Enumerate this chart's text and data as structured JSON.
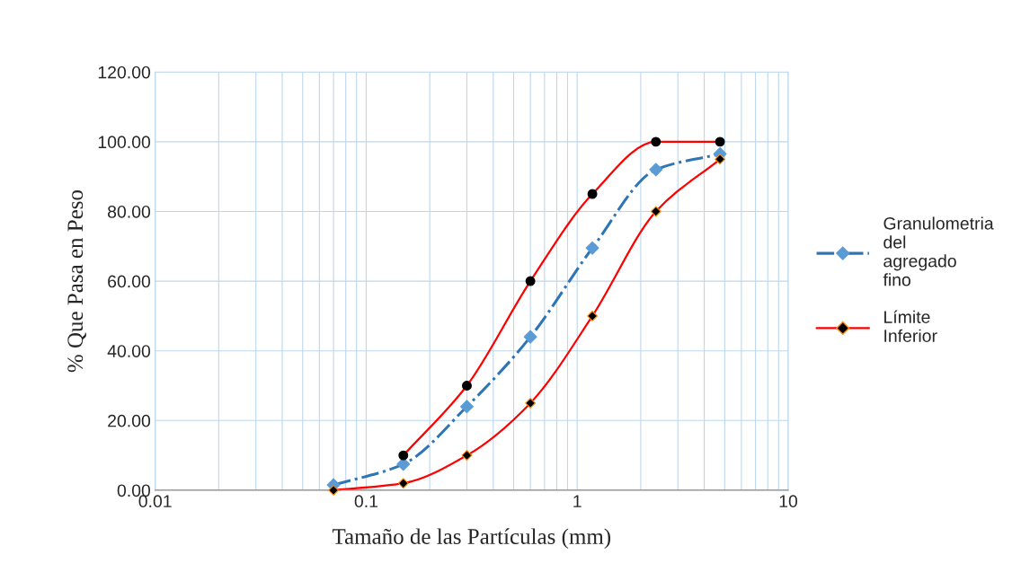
{
  "chart_data": {
    "type": "line",
    "xlabel": "Tamaño de las Partículas (mm)",
    "ylabel": "% Que Pasa en Peso",
    "log": "x",
    "grid": true,
    "legend": "right",
    "xlim": [
      0.01,
      10
    ],
    "xticks": [
      0.01,
      0.1,
      1,
      10
    ],
    "ylim": [
      0,
      120
    ],
    "yticks": [
      {
        "value": 0,
        "label": "0.00"
      },
      {
        "value": 20,
        "label": "20.00"
      },
      {
        "value": 40,
        "label": "40.00"
      },
      {
        "value": 60,
        "label": "60.00"
      },
      {
        "value": 80,
        "label": "80.00"
      },
      {
        "value": 100,
        "label": "100.00"
      },
      {
        "value": 120,
        "label": "120.00"
      }
    ],
    "series": [
      {
        "name": "Granulometria del agregado fino",
        "color": "#2e75b6",
        "colors": [
          "#5b9bd5",
          "#5b9bd5",
          "#5b9bd5",
          "#5b9bd5",
          "#5b9bd5",
          "#5b9bd5",
          "#5b9bd5"
        ],
        "marker": "diamond",
        "line_style": "dashdot",
        "x": [
          0.07,
          0.15,
          0.3,
          0.6,
          1.18,
          2.36,
          4.75
        ],
        "values": [
          1.5,
          7.5,
          24,
          44,
          69.5,
          92,
          96.5
        ]
      },
      {
        "name": "Límite Inferior",
        "color": "#ff0000",
        "colors": [
          "#000000",
          "#000000",
          "#000000",
          "#000000",
          "#000000",
          "#000000",
          "#000000"
        ],
        "marker": "diamond",
        "line_style": "solid",
        "x": [
          0.07,
          0.15,
          0.3,
          0.6,
          1.18,
          2.36,
          4.75
        ],
        "values": [
          0,
          2,
          10,
          25,
          50,
          80,
          95
        ]
      },
      {
        "color": "#ff0000",
        "colors": [
          "#000000",
          "#000000",
          "#000000",
          "#000000",
          "#000000",
          "#000000"
        ],
        "marker": "circle",
        "line_style": "solid",
        "x": [
          0.15,
          0.3,
          0.6,
          1.18,
          2.36,
          4.75
        ],
        "values": [
          10,
          30,
          60,
          85,
          100,
          100
        ]
      }
    ]
  }
}
